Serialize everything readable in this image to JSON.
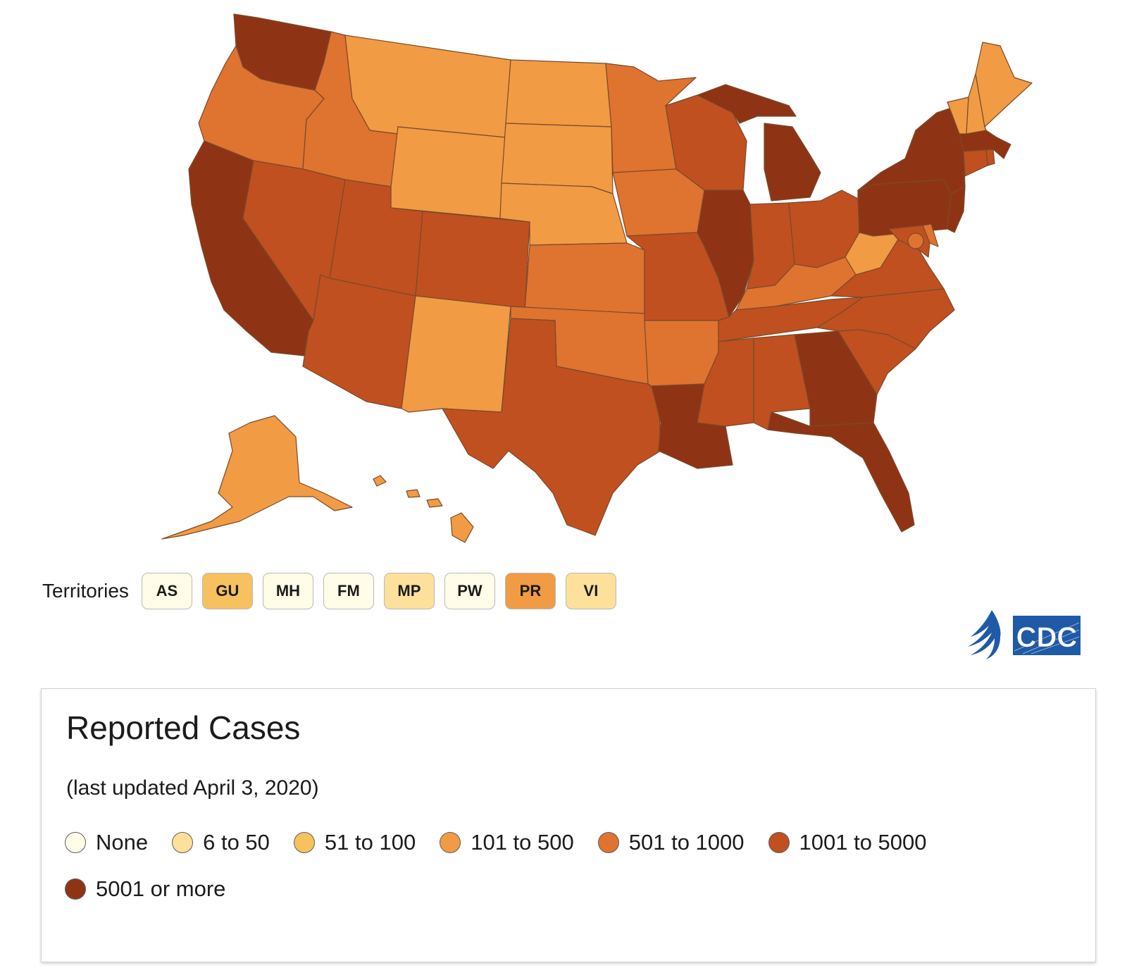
{
  "colors": {
    "none": "#fffde7",
    "c6_50": "#fde09a",
    "c51_100": "#f6c15e",
    "c101_500": "#f19b44",
    "c501_1000": "#df7330",
    "c1001_5000": "#c05020",
    "c5001_plus": "#8e3414"
  },
  "map": {
    "states": [
      {
        "id": "WA",
        "level": "c5001_plus"
      },
      {
        "id": "OR",
        "level": "c501_1000"
      },
      {
        "id": "CA",
        "level": "c5001_plus"
      },
      {
        "id": "ID",
        "level": "c501_1000"
      },
      {
        "id": "NV",
        "level": "c1001_5000"
      },
      {
        "id": "MT",
        "level": "c101_500"
      },
      {
        "id": "WY",
        "level": "c101_500"
      },
      {
        "id": "UT",
        "level": "c1001_5000"
      },
      {
        "id": "AZ",
        "level": "c1001_5000"
      },
      {
        "id": "CO",
        "level": "c1001_5000"
      },
      {
        "id": "NM",
        "level": "c101_500"
      },
      {
        "id": "ND",
        "level": "c101_500"
      },
      {
        "id": "SD",
        "level": "c101_500"
      },
      {
        "id": "NE",
        "level": "c101_500"
      },
      {
        "id": "KS",
        "level": "c501_1000"
      },
      {
        "id": "OK",
        "level": "c501_1000"
      },
      {
        "id": "TX",
        "level": "c1001_5000"
      },
      {
        "id": "MN",
        "level": "c501_1000"
      },
      {
        "id": "IA",
        "level": "c501_1000"
      },
      {
        "id": "MO",
        "level": "c1001_5000"
      },
      {
        "id": "AR",
        "level": "c501_1000"
      },
      {
        "id": "LA",
        "level": "c5001_plus"
      },
      {
        "id": "WI",
        "level": "c1001_5000"
      },
      {
        "id": "IL",
        "level": "c5001_plus"
      },
      {
        "id": "MI",
        "level": "c5001_plus"
      },
      {
        "id": "IN",
        "level": "c1001_5000"
      },
      {
        "id": "OH",
        "level": "c1001_5000"
      },
      {
        "id": "KY",
        "level": "c501_1000"
      },
      {
        "id": "TN",
        "level": "c1001_5000"
      },
      {
        "id": "MS",
        "level": "c1001_5000"
      },
      {
        "id": "AL",
        "level": "c1001_5000"
      },
      {
        "id": "GA",
        "level": "c5001_plus"
      },
      {
        "id": "FL",
        "level": "c5001_plus"
      },
      {
        "id": "SC",
        "level": "c1001_5000"
      },
      {
        "id": "NC",
        "level": "c1001_5000"
      },
      {
        "id": "VA",
        "level": "c1001_5000"
      },
      {
        "id": "WV",
        "level": "c101_500"
      },
      {
        "id": "PA",
        "level": "c5001_plus"
      },
      {
        "id": "NY",
        "level": "c5001_plus"
      },
      {
        "id": "NJ",
        "level": "c5001_plus"
      },
      {
        "id": "MD",
        "level": "c1001_5000"
      },
      {
        "id": "DE",
        "level": "c501_1000"
      },
      {
        "id": "CT",
        "level": "c1001_5000"
      },
      {
        "id": "RI",
        "level": "c1001_5000"
      },
      {
        "id": "MA",
        "level": "c5001_plus"
      },
      {
        "id": "VT",
        "level": "c101_500"
      },
      {
        "id": "NH",
        "level": "c101_500"
      },
      {
        "id": "ME",
        "level": "c101_500"
      },
      {
        "id": "AK",
        "level": "c101_500"
      },
      {
        "id": "HI",
        "level": "c101_500"
      },
      {
        "id": "DC",
        "level": "c501_1000"
      }
    ]
  },
  "territories": {
    "label": "Territories",
    "items": [
      {
        "code": "AS",
        "level": "none"
      },
      {
        "code": "GU",
        "level": "c51_100"
      },
      {
        "code": "MH",
        "level": "none"
      },
      {
        "code": "FM",
        "level": "none"
      },
      {
        "code": "MP",
        "level": "c6_50"
      },
      {
        "code": "PW",
        "level": "none"
      },
      {
        "code": "PR",
        "level": "c101_500"
      },
      {
        "code": "VI",
        "level": "c6_50"
      }
    ]
  },
  "logos": {
    "agency_text": "CDC",
    "brand_color": "#1f5aa6"
  },
  "legend": {
    "title": "Reported Cases",
    "subtitle": "(last updated April 3, 2020)",
    "items": [
      {
        "label": "None",
        "level": "none"
      },
      {
        "label": "6 to 50",
        "level": "c6_50"
      },
      {
        "label": "51 to 100",
        "level": "c51_100"
      },
      {
        "label": "101 to 500",
        "level": "c101_500"
      },
      {
        "label": "501 to 1000",
        "level": "c501_1000"
      },
      {
        "label": "1001 to 5000",
        "level": "c1001_5000"
      },
      {
        "label": "5001 or more",
        "level": "c5001_plus"
      }
    ]
  }
}
